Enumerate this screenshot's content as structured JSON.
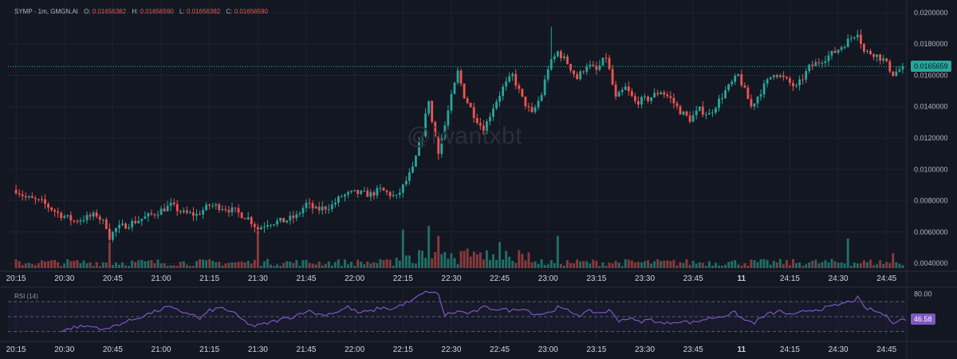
{
  "window": {
    "symbol": "SYMP",
    "interval": "1m",
    "source": "GMGN.AI",
    "ohlc": {
      "open": "0.01656382",
      "high": "0.01656590",
      "low": "0.01656382",
      "close": "0.01656590"
    },
    "watermark": "@iwantxbt"
  },
  "colors": {
    "background": "#131722",
    "up": "#26a69a",
    "down": "#ef5350",
    "up_volume": "#1f6f66",
    "down_volume": "#8a3a3c",
    "rsi_line": "#7e57c2",
    "grid": "#1e222d",
    "text": "#b2b5be"
  },
  "chart_data": [
    {
      "type": "candlestick",
      "title": "SYMP · 1m, GMGN.AI",
      "x_ticks": [
        "20:15",
        "20:30",
        "20:45",
        "21:00",
        "21:15",
        "21:30",
        "21:45",
        "22:00",
        "22:15",
        "22:30",
        "22:45",
        "23:00",
        "23:15",
        "23:30",
        "23:45",
        "11",
        "24:15",
        "24:30",
        "24:45"
      ],
      "x_tick_times": [
        0,
        15,
        30,
        45,
        60,
        75,
        90,
        105,
        120,
        135,
        150,
        165,
        180,
        195,
        210,
        225,
        240,
        255,
        270
      ],
      "time_range": [
        -2.5,
        276
      ],
      "y_ticks": [
        "0.0200000",
        "0.0180000",
        "0.0160000",
        "0.0140000",
        "0.0120000",
        "0.0100000",
        "0.0080000",
        "0.0060000",
        "0.0040000"
      ],
      "ylim": [
        0.0036,
        0.0203
      ],
      "current_price": 0.0165659,
      "current_price_label": "0.0165659",
      "anchors": [
        [
          0,
          0.0087
        ],
        [
          3,
          0.0082
        ],
        [
          8,
          0.0079
        ],
        [
          13,
          0.0072
        ],
        [
          18,
          0.0067
        ],
        [
          25,
          0.0071
        ],
        [
          28,
          0.0064
        ],
        [
          29,
          0.0057
        ],
        [
          31,
          0.0062
        ],
        [
          36,
          0.0066
        ],
        [
          42,
          0.0071
        ],
        [
          45,
          0.0074
        ],
        [
          48,
          0.0077
        ],
        [
          52,
          0.0072
        ],
        [
          56,
          0.0071
        ],
        [
          60,
          0.0077
        ],
        [
          64,
          0.0076
        ],
        [
          68,
          0.0073
        ],
        [
          72,
          0.0069
        ],
        [
          75,
          0.0062
        ],
        [
          78,
          0.0066
        ],
        [
          83,
          0.0067
        ],
        [
          87,
          0.007
        ],
        [
          90,
          0.0078
        ],
        [
          93,
          0.0074
        ],
        [
          98,
          0.0077
        ],
        [
          101,
          0.0083
        ],
        [
          105,
          0.0085
        ],
        [
          110,
          0.0084
        ],
        [
          113,
          0.0087
        ],
        [
          118,
          0.0082
        ],
        [
          120,
          0.0089
        ],
        [
          123,
          0.01
        ],
        [
          126,
          0.0123
        ],
        [
          128,
          0.0145
        ],
        [
          129,
          0.013
        ],
        [
          131,
          0.0112
        ],
        [
          133,
          0.0128
        ],
        [
          135,
          0.0146
        ],
        [
          137,
          0.0162
        ],
        [
          139,
          0.0147
        ],
        [
          142,
          0.0135
        ],
        [
          145,
          0.0125
        ],
        [
          148,
          0.014
        ],
        [
          151,
          0.0152
        ],
        [
          154,
          0.016
        ],
        [
          157,
          0.0145
        ],
        [
          160,
          0.0135
        ],
        [
          163,
          0.0148
        ],
        [
          165,
          0.0165
        ],
        [
          168,
          0.0175
        ],
        [
          171,
          0.0168
        ],
        [
          174,
          0.0158
        ],
        [
          177,
          0.0167
        ],
        [
          180,
          0.0163
        ],
        [
          183,
          0.0172
        ],
        [
          186,
          0.0145
        ],
        [
          189,
          0.0152
        ],
        [
          192,
          0.0143
        ],
        [
          196,
          0.0145
        ],
        [
          200,
          0.015
        ],
        [
          203,
          0.0145
        ],
        [
          206,
          0.0137
        ],
        [
          209,
          0.0132
        ],
        [
          212,
          0.0138
        ],
        [
          215,
          0.0135
        ],
        [
          220,
          0.015
        ],
        [
          224,
          0.016
        ],
        [
          228,
          0.014
        ],
        [
          231,
          0.015
        ],
        [
          235,
          0.0162
        ],
        [
          238,
          0.0158
        ],
        [
          242,
          0.0152
        ],
        [
          246,
          0.0165
        ],
        [
          250,
          0.017
        ],
        [
          254,
          0.0175
        ],
        [
          258,
          0.0182
        ],
        [
          261,
          0.0188
        ],
        [
          263,
          0.0175
        ],
        [
          266,
          0.0174
        ],
        [
          269,
          0.017
        ],
        [
          272,
          0.0161
        ],
        [
          275,
          0.0165
        ]
      ],
      "volume_spikes": [
        [
          29,
          2.1
        ],
        [
          75,
          3.0
        ],
        [
          120,
          3.1
        ],
        [
          128,
          3.4
        ],
        [
          131,
          2.6
        ],
        [
          150,
          2.1
        ],
        [
          168,
          2.6
        ],
        [
          258,
          2.4
        ],
        [
          272,
          1.2
        ]
      ]
    },
    {
      "type": "line",
      "name": "RSI (14)",
      "label": "RSI (14)",
      "y_ticks": [
        "80.00",
        "46.58"
      ],
      "ylim": [
        20,
        85
      ],
      "upper_band": 70,
      "middle_band": 50,
      "lower_band": 30,
      "current_value": 46.58,
      "current_value_label": "46.58",
      "anchors": [
        [
          14,
          30
        ],
        [
          18,
          36
        ],
        [
          22,
          37
        ],
        [
          25,
          36
        ],
        [
          28,
          32
        ],
        [
          31,
          39
        ],
        [
          35,
          44
        ],
        [
          40,
          52
        ],
        [
          44,
          58
        ],
        [
          47,
          63
        ],
        [
          50,
          58
        ],
        [
          54,
          54
        ],
        [
          57,
          47
        ],
        [
          60,
          58
        ],
        [
          64,
          62
        ],
        [
          68,
          53
        ],
        [
          71,
          43
        ],
        [
          74,
          37
        ],
        [
          77,
          40
        ],
        [
          82,
          46
        ],
        [
          86,
          50
        ],
        [
          90,
          58
        ],
        [
          95,
          52
        ],
        [
          100,
          57
        ],
        [
          103,
          63
        ],
        [
          106,
          55
        ],
        [
          110,
          57
        ],
        [
          113,
          62
        ],
        [
          117,
          60
        ],
        [
          120,
          67
        ],
        [
          123,
          71
        ],
        [
          125,
          78
        ],
        [
          128,
          84
        ],
        [
          131,
          79
        ],
        [
          133,
          52
        ],
        [
          137,
          57
        ],
        [
          141,
          54
        ],
        [
          145,
          62
        ],
        [
          150,
          60
        ],
        [
          154,
          58
        ],
        [
          157,
          62
        ],
        [
          161,
          53
        ],
        [
          165,
          55
        ],
        [
          168,
          62
        ],
        [
          171,
          58
        ],
        [
          175,
          52
        ],
        [
          178,
          57
        ],
        [
          181,
          55
        ],
        [
          184,
          58
        ],
        [
          187,
          45
        ],
        [
          190,
          48
        ],
        [
          193,
          43
        ],
        [
          197,
          46
        ],
        [
          201,
          40
        ],
        [
          205,
          44
        ],
        [
          210,
          42
        ],
        [
          214,
          47
        ],
        [
          218,
          50
        ],
        [
          223,
          55
        ],
        [
          226,
          45
        ],
        [
          229,
          42
        ],
        [
          233,
          53
        ],
        [
          237,
          57
        ],
        [
          241,
          51
        ],
        [
          245,
          58
        ],
        [
          249,
          60
        ],
        [
          253,
          63
        ],
        [
          257,
          68
        ],
        [
          260,
          72
        ],
        [
          261,
          75
        ],
        [
          263,
          62
        ],
        [
          266,
          58
        ],
        [
          269,
          53
        ],
        [
          272,
          43
        ],
        [
          274,
          46
        ],
        [
          276,
          46
        ]
      ]
    }
  ]
}
